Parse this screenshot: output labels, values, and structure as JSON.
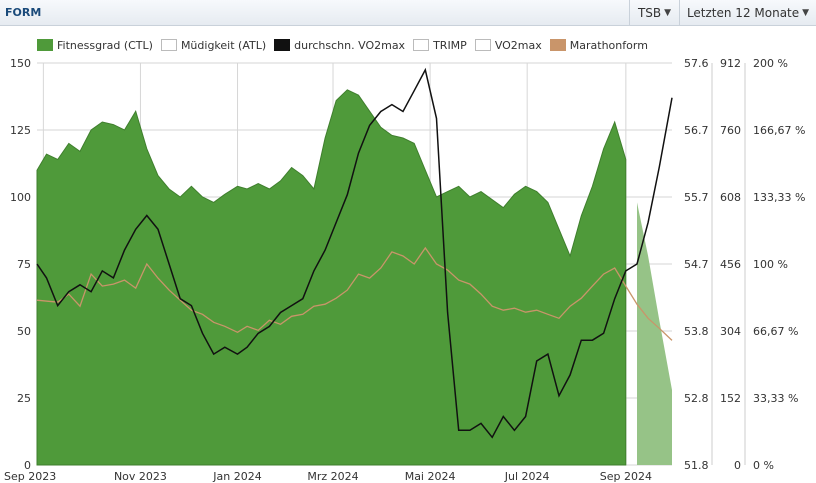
{
  "header": {
    "title": "FORM",
    "metric_select": "TSB",
    "range_select": "Letzten 12 Monate"
  },
  "colors": {
    "ctl": "#4f9a3a",
    "ctl_projection": "#96c387",
    "vo2": "#111111",
    "marathon": "#c9956a",
    "grid": "#d6d6d6"
  },
  "chart_data": {
    "type": "line",
    "title": "",
    "legend": [
      {
        "name": "Fitnessgrad (CTL)",
        "color": "#4f9a3a",
        "icon": "filled-swatch"
      },
      {
        "name": "Müdigkeit (ATL)",
        "color": "#ffffff",
        "icon": "empty-swatch"
      },
      {
        "name": "durchschn. VO2max",
        "color": "#111111",
        "icon": "filled-swatch"
      },
      {
        "name": "TRIMP",
        "color": "#ffffff",
        "icon": "empty-swatch"
      },
      {
        "name": "VO2max",
        "color": "#ffffff",
        "icon": "empty-swatch"
      },
      {
        "name": "Marathonform",
        "color": "#c9956a",
        "icon": "filled-swatch"
      }
    ],
    "legend_position": "top",
    "grid": true,
    "x_range": [
      "2023-08-28",
      "2024-09-30"
    ],
    "x_ticks": [
      {
        "date": "2023-09-01",
        "label": "Sep 2023"
      },
      {
        "date": "2023-11-01",
        "label": "Nov 2023"
      },
      {
        "date": "2024-01-01",
        "label": "Jan 2024"
      },
      {
        "date": "2024-03-01",
        "label": "Mrz 2024"
      },
      {
        "date": "2024-05-01",
        "label": "Mai 2024"
      },
      {
        "date": "2024-07-01",
        "label": "Jul 2024"
      },
      {
        "date": "2024-09-01",
        "label": "Sep 2024"
      }
    ],
    "y_axis_ctl": {
      "range": [
        0,
        150
      ],
      "ticks": [
        "0",
        "25",
        "50",
        "75",
        "100",
        "125",
        "150"
      ]
    },
    "y_axis_vo2": {
      "range": [
        51.8,
        57.6
      ],
      "ticks": [
        "51.8",
        "52.8",
        "53.8",
        "54.7",
        "55.7",
        "56.7",
        "57.6"
      ]
    },
    "y_axis_trimp": {
      "range": [
        0,
        912
      ],
      "ticks": [
        "0",
        "152",
        "304",
        "456",
        "608",
        "760",
        "912"
      ]
    },
    "y_axis_marathon": {
      "range": [
        0,
        200
      ],
      "ticks": [
        "0 %",
        "33,33 %",
        "66,67 %",
        "100 %",
        "133,33 %",
        "166,67 %",
        "200 %"
      ]
    },
    "projection_start": "2024-09-02",
    "series": [
      {
        "name": "Fitnessgrad (CTL)",
        "type": "area",
        "axis": "ctl",
        "points": [
          [
            "2023-08-28",
            110
          ],
          [
            "2023-09-03",
            116
          ],
          [
            "2023-09-10",
            114
          ],
          [
            "2023-09-17",
            120
          ],
          [
            "2023-09-24",
            117
          ],
          [
            "2023-10-01",
            125
          ],
          [
            "2023-10-08",
            128
          ],
          [
            "2023-10-15",
            127
          ],
          [
            "2023-10-22",
            125
          ],
          [
            "2023-10-29",
            132
          ],
          [
            "2023-11-05",
            118
          ],
          [
            "2023-11-12",
            108
          ],
          [
            "2023-11-19",
            103
          ],
          [
            "2023-11-26",
            100
          ],
          [
            "2023-12-03",
            104
          ],
          [
            "2023-12-10",
            100
          ],
          [
            "2023-12-17",
            98
          ],
          [
            "2023-12-24",
            101
          ],
          [
            "2024-01-01",
            104
          ],
          [
            "2024-01-07",
            103
          ],
          [
            "2024-01-14",
            105
          ],
          [
            "2024-01-21",
            103
          ],
          [
            "2024-01-28",
            106
          ],
          [
            "2024-02-04",
            111
          ],
          [
            "2024-02-11",
            108
          ],
          [
            "2024-02-18",
            103
          ],
          [
            "2024-02-25",
            122
          ],
          [
            "2024-03-03",
            136
          ],
          [
            "2024-03-10",
            140
          ],
          [
            "2024-03-17",
            138
          ],
          [
            "2024-03-24",
            132
          ],
          [
            "2024-03-31",
            126
          ],
          [
            "2024-04-07",
            123
          ],
          [
            "2024-04-14",
            122
          ],
          [
            "2024-04-21",
            120
          ],
          [
            "2024-04-28",
            110
          ],
          [
            "2024-05-05",
            100
          ],
          [
            "2024-05-12",
            102
          ],
          [
            "2024-05-19",
            104
          ],
          [
            "2024-05-26",
            100
          ],
          [
            "2024-06-02",
            102
          ],
          [
            "2024-06-09",
            99
          ],
          [
            "2024-06-16",
            96
          ],
          [
            "2024-06-23",
            101
          ],
          [
            "2024-06-30",
            104
          ],
          [
            "2024-07-07",
            102
          ],
          [
            "2024-07-14",
            98
          ],
          [
            "2024-07-21",
            88
          ],
          [
            "2024-07-28",
            78
          ],
          [
            "2024-08-04",
            93
          ],
          [
            "2024-08-11",
            104
          ],
          [
            "2024-08-18",
            118
          ],
          [
            "2024-08-25",
            128
          ],
          [
            "2024-09-01",
            114
          ],
          [
            "2024-09-08",
            98
          ],
          [
            "2024-09-15",
            78
          ],
          [
            "2024-09-22",
            54
          ],
          [
            "2024-09-30",
            28
          ]
        ]
      },
      {
        "name": "durchschn. VO2max",
        "type": "line",
        "axis": "vo2",
        "points": [
          [
            "2023-08-28",
            54.7
          ],
          [
            "2023-09-03",
            54.5
          ],
          [
            "2023-09-10",
            54.1
          ],
          [
            "2023-09-17",
            54.3
          ],
          [
            "2023-09-24",
            54.4
          ],
          [
            "2023-10-01",
            54.3
          ],
          [
            "2023-10-08",
            54.6
          ],
          [
            "2023-10-15",
            54.5
          ],
          [
            "2023-10-22",
            54.9
          ],
          [
            "2023-10-29",
            55.2
          ],
          [
            "2023-11-05",
            55.4
          ],
          [
            "2023-11-12",
            55.2
          ],
          [
            "2023-11-19",
            54.7
          ],
          [
            "2023-11-26",
            54.2
          ],
          [
            "2023-12-03",
            54.1
          ],
          [
            "2023-12-10",
            53.7
          ],
          [
            "2023-12-17",
            53.4
          ],
          [
            "2023-12-24",
            53.5
          ],
          [
            "2024-01-01",
            53.4
          ],
          [
            "2024-01-07",
            53.5
          ],
          [
            "2024-01-14",
            53.7
          ],
          [
            "2024-01-21",
            53.8
          ],
          [
            "2024-01-28",
            54.0
          ],
          [
            "2024-02-04",
            54.1
          ],
          [
            "2024-02-11",
            54.2
          ],
          [
            "2024-02-18",
            54.6
          ],
          [
            "2024-02-25",
            54.9
          ],
          [
            "2024-03-03",
            55.3
          ],
          [
            "2024-03-10",
            55.7
          ],
          [
            "2024-03-17",
            56.3
          ],
          [
            "2024-03-24",
            56.7
          ],
          [
            "2024-03-31",
            56.9
          ],
          [
            "2024-04-07",
            57.0
          ],
          [
            "2024-04-14",
            56.9
          ],
          [
            "2024-04-21",
            57.2
          ],
          [
            "2024-04-28",
            57.5
          ],
          [
            "2024-05-05",
            56.8
          ],
          [
            "2024-05-12",
            54.0
          ],
          [
            "2024-05-19",
            52.3
          ],
          [
            "2024-05-26",
            52.3
          ],
          [
            "2024-06-02",
            52.4
          ],
          [
            "2024-06-09",
            52.2
          ],
          [
            "2024-06-16",
            52.5
          ],
          [
            "2024-06-23",
            52.3
          ],
          [
            "2024-06-30",
            52.5
          ],
          [
            "2024-07-07",
            53.3
          ],
          [
            "2024-07-14",
            53.4
          ],
          [
            "2024-07-21",
            52.8
          ],
          [
            "2024-07-28",
            53.1
          ],
          [
            "2024-08-04",
            53.6
          ],
          [
            "2024-08-11",
            53.6
          ],
          [
            "2024-08-18",
            53.7
          ],
          [
            "2024-08-25",
            54.2
          ],
          [
            "2024-09-01",
            54.6
          ],
          [
            "2024-09-08",
            54.7
          ],
          [
            "2024-09-15",
            55.3
          ],
          [
            "2024-09-22",
            56.1
          ],
          [
            "2024-09-30",
            57.1
          ]
        ]
      },
      {
        "name": "Marathonform",
        "type": "line",
        "axis": "marathon",
        "points": [
          [
            "2023-08-28",
            82
          ],
          [
            "2023-09-10",
            81
          ],
          [
            "2023-09-17",
            85
          ],
          [
            "2023-09-24",
            79
          ],
          [
            "2023-10-01",
            95
          ],
          [
            "2023-10-08",
            89
          ],
          [
            "2023-10-15",
            90
          ],
          [
            "2023-10-22",
            92
          ],
          [
            "2023-10-29",
            88
          ],
          [
            "2023-11-05",
            100
          ],
          [
            "2023-11-12",
            93
          ],
          [
            "2023-11-19",
            87
          ],
          [
            "2023-11-26",
            82
          ],
          [
            "2023-12-03",
            77
          ],
          [
            "2023-12-10",
            75
          ],
          [
            "2023-12-17",
            71
          ],
          [
            "2023-12-24",
            69
          ],
          [
            "2024-01-01",
            66
          ],
          [
            "2024-01-07",
            69
          ],
          [
            "2024-01-14",
            67
          ],
          [
            "2024-01-21",
            72
          ],
          [
            "2024-01-28",
            70
          ],
          [
            "2024-02-04",
            74
          ],
          [
            "2024-02-11",
            75
          ],
          [
            "2024-02-18",
            79
          ],
          [
            "2024-02-25",
            80
          ],
          [
            "2024-03-03",
            83
          ],
          [
            "2024-03-10",
            87
          ],
          [
            "2024-03-17",
            95
          ],
          [
            "2024-03-24",
            93
          ],
          [
            "2024-03-31",
            98
          ],
          [
            "2024-04-07",
            106
          ],
          [
            "2024-04-14",
            104
          ],
          [
            "2024-04-21",
            100
          ],
          [
            "2024-04-28",
            108
          ],
          [
            "2024-05-05",
            100
          ],
          [
            "2024-05-12",
            97
          ],
          [
            "2024-05-19",
            92
          ],
          [
            "2024-05-26",
            90
          ],
          [
            "2024-06-02",
            85
          ],
          [
            "2024-06-09",
            79
          ],
          [
            "2024-06-16",
            77
          ],
          [
            "2024-06-23",
            78
          ],
          [
            "2024-06-30",
            76
          ],
          [
            "2024-07-07",
            77
          ],
          [
            "2024-07-14",
            75
          ],
          [
            "2024-07-21",
            73
          ],
          [
            "2024-07-28",
            79
          ],
          [
            "2024-08-04",
            83
          ],
          [
            "2024-08-11",
            89
          ],
          [
            "2024-08-18",
            95
          ],
          [
            "2024-08-25",
            98
          ],
          [
            "2024-09-01",
            89
          ],
          [
            "2024-09-08",
            80
          ],
          [
            "2024-09-15",
            73
          ],
          [
            "2024-09-22",
            68
          ],
          [
            "2024-09-30",
            62
          ]
        ]
      }
    ]
  }
}
